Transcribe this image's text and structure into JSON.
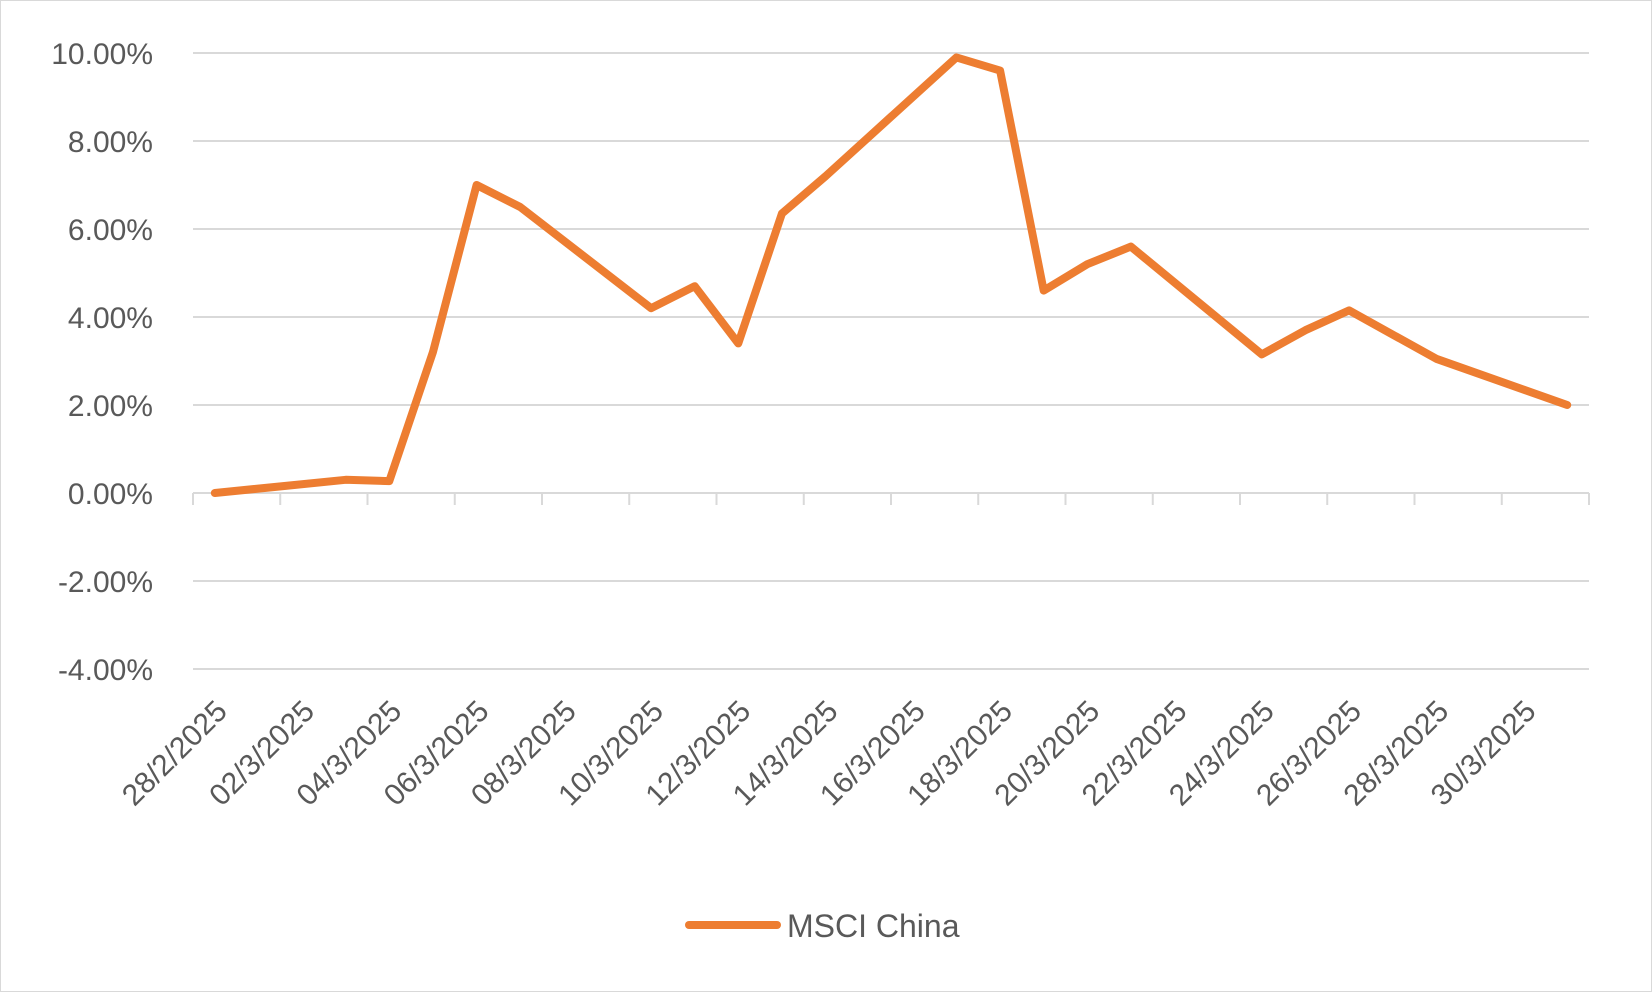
{
  "chart_data": {
    "type": "line",
    "x": [
      "28/2/2025",
      "03/3/2025",
      "04/3/2025",
      "05/3/2025",
      "06/3/2025",
      "07/3/2025",
      "10/3/2025",
      "11/3/2025",
      "12/3/2025",
      "13/3/2025",
      "14/3/2025",
      "17/3/2025",
      "18/3/2025",
      "19/3/2025",
      "20/3/2025",
      "21/3/2025",
      "24/3/2025",
      "25/3/2025",
      "26/3/2025",
      "27/3/2025",
      "28/3/2025",
      "31/3/2025"
    ],
    "x_tick_labels": [
      "28/2/2025",
      "02/3/2025",
      "04/3/2025",
      "06/3/2025",
      "08/3/2025",
      "10/3/2025",
      "12/3/2025",
      "14/3/2025",
      "16/3/2025",
      "18/3/2025",
      "20/3/2025",
      "22/3/2025",
      "24/3/2025",
      "26/3/2025",
      "28/3/2025",
      "30/3/2025"
    ],
    "series": [
      {
        "name": "MSCI China",
        "color": "#ED7D31",
        "values": [
          0.0,
          0.3,
          0.27,
          3.2,
          7.0,
          6.5,
          4.2,
          4.7,
          3.4,
          6.35,
          7.2,
          9.9,
          9.6,
          4.6,
          5.2,
          5.6,
          3.15,
          3.7,
          4.15,
          3.6,
          3.05,
          2.0
        ]
      }
    ],
    "y_tick_labels": [
      "10.00%",
      "8.00%",
      "6.00%",
      "4.00%",
      "2.00%",
      "0.00%",
      "-2.00%",
      "-4.00%"
    ],
    "ylim": [
      -4,
      10
    ],
    "yticks": [
      10,
      8,
      6,
      4,
      2,
      0,
      -2,
      -4
    ],
    "xlim": [
      "28/2/2025",
      "31/3/2025"
    ],
    "grid": true,
    "legend_position": "bottom",
    "title": "",
    "xlabel": "",
    "ylabel": ""
  },
  "colors": {
    "gridline": "#d9d9d9",
    "axis_text": "#595959"
  }
}
